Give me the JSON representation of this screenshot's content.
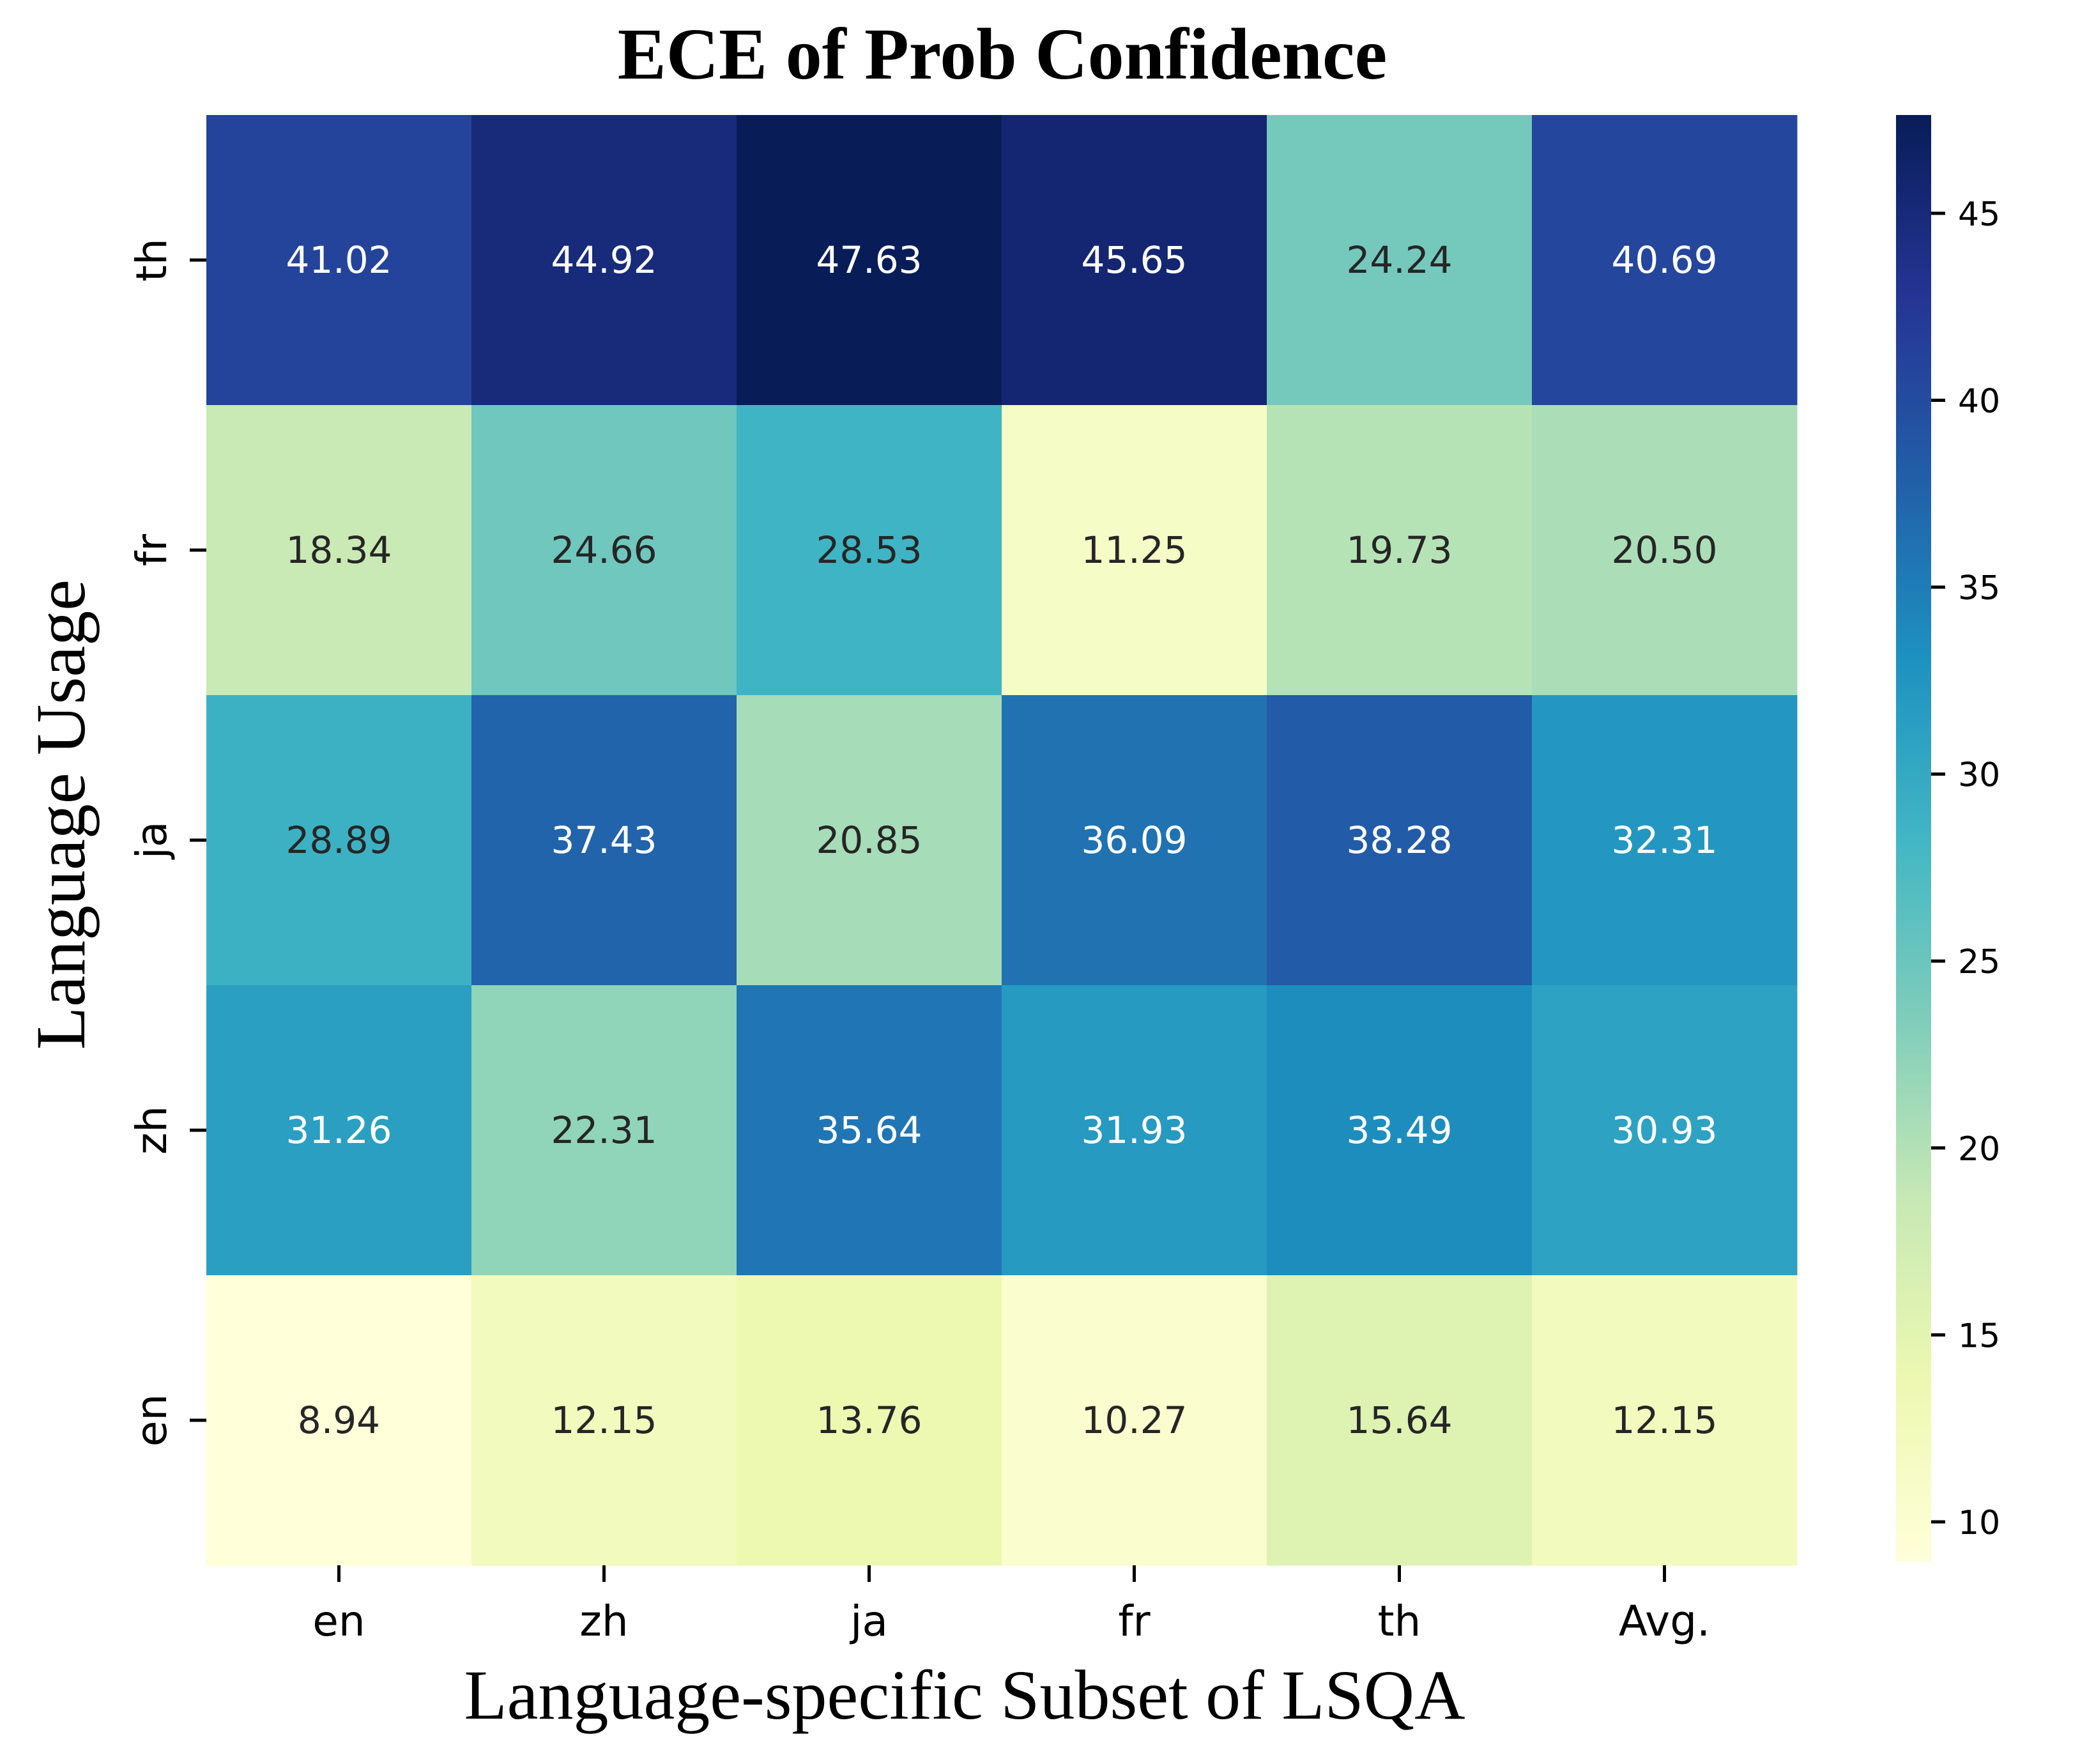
{
  "chart_data": {
    "type": "heatmap",
    "title": "ECE of Prob Confidence",
    "xlabel": "Language-specific Subset of LSQA",
    "ylabel": "Language Usage",
    "x_categories": [
      "en",
      "zh",
      "ja",
      "fr",
      "th",
      "Avg."
    ],
    "y_categories": [
      "th",
      "fr",
      "ja",
      "zh",
      "en"
    ],
    "values": [
      [
        41.02,
        44.92,
        47.63,
        45.65,
        24.24,
        40.69
      ],
      [
        18.34,
        24.66,
        28.53,
        11.25,
        19.73,
        20.5
      ],
      [
        28.89,
        37.43,
        20.85,
        36.09,
        38.28,
        32.31
      ],
      [
        31.26,
        22.31,
        35.64,
        31.93,
        33.49,
        30.93
      ],
      [
        8.94,
        12.15,
        13.76,
        10.27,
        15.64,
        12.15
      ]
    ],
    "colormap": "YlGnBu",
    "colorbar": {
      "min": 8.94,
      "max": 47.63,
      "ticks": [
        10,
        15,
        20,
        25,
        30,
        35,
        40,
        45
      ]
    },
    "label_colors": {
      "dark": "#262626",
      "light": "#ffffff"
    }
  }
}
